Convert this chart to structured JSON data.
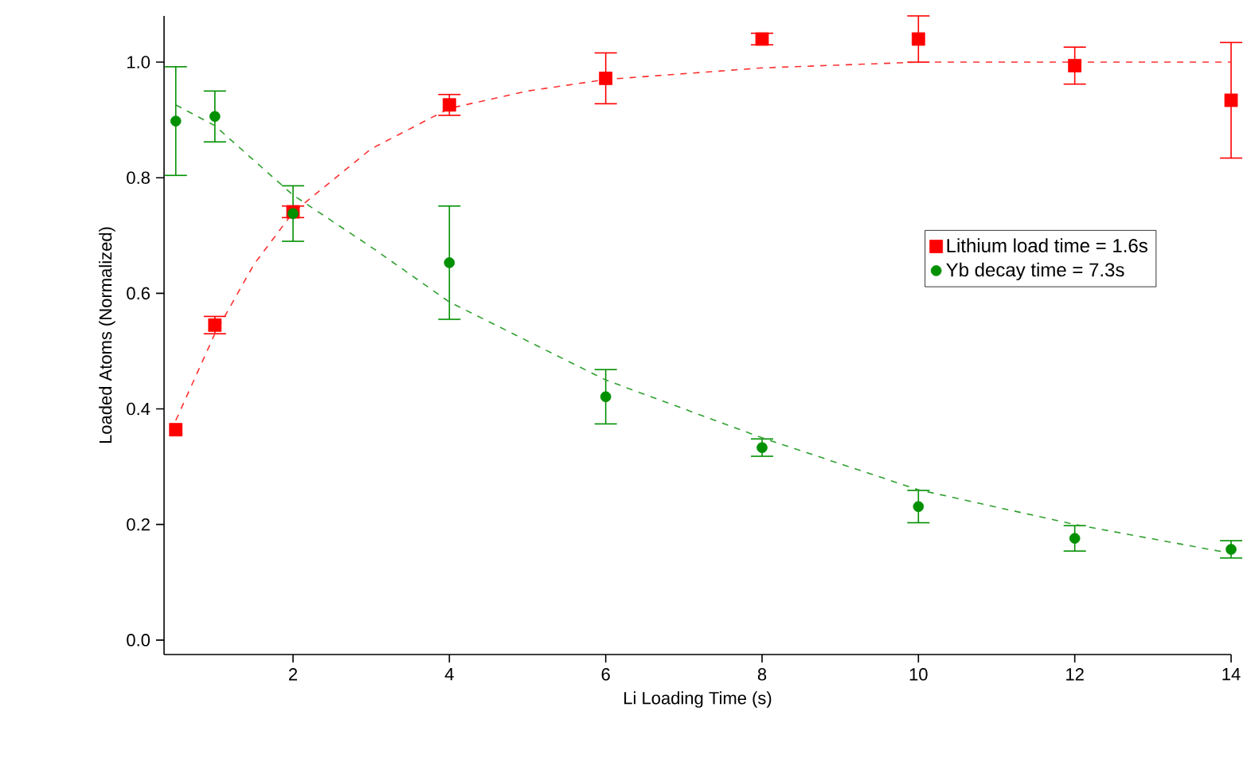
{
  "chart_data": {
    "type": "scatter",
    "xlabel": "Li Loading Time (s)",
    "ylabel": "Loaded Atoms (Normalized)",
    "xlim": [
      0.35,
      14.0
    ],
    "ylim": [
      -0.025,
      1.08
    ],
    "xticks": [
      2,
      4,
      6,
      8,
      10,
      12,
      14
    ],
    "yticks": [
      {
        "value": 0,
        "label": "0.0"
      },
      {
        "value": 0.2,
        "label": "0.2"
      },
      {
        "value": 0.4,
        "label": "0.4"
      },
      {
        "value": 0.6,
        "label": "0.6"
      },
      {
        "value": 0.8,
        "label": "0.8"
      },
      {
        "value": 1.0,
        "label": "1.0"
      }
    ],
    "grid": false,
    "legend": "right",
    "series": [
      {
        "name": "Lithium load time = 1.6s",
        "color": "#ff0000",
        "marker": "square",
        "x": [
          0.5,
          1,
          2,
          4,
          6,
          8,
          10,
          12,
          14
        ],
        "values": [
          0.364,
          0.545,
          0.741,
          0.926,
          0.972,
          1.04,
          1.04,
          0.994,
          0.934
        ],
        "errors": [
          null,
          0.015,
          0.01,
          0.018,
          0.044,
          0.01,
          0.04,
          0.032,
          0.1
        ]
      },
      {
        "name": "Yb decay time = 7.3s",
        "color": "#009000",
        "marker": "circle",
        "x": [
          0.5,
          1,
          2,
          4,
          6,
          8,
          10,
          12,
          14
        ],
        "values": [
          0.898,
          0.906,
          0.738,
          0.653,
          0.421,
          0.333,
          0.231,
          0.176,
          0.157
        ],
        "errors": [
          0.094,
          0.044,
          0.048,
          0.098,
          0.047,
          0.015,
          0.028,
          0.022,
          0.015
        ]
      },
      {
        "type": "line",
        "color": "#ff3030",
        "marker": "none",
        "line_style": "dashed",
        "x": [
          0.5,
          1,
          1.5,
          2,
          3,
          4,
          5,
          6,
          8,
          10,
          12,
          14
        ],
        "values": [
          0.38,
          0.53,
          0.65,
          0.74,
          0.85,
          0.92,
          0.95,
          0.97,
          0.99,
          1.0,
          1.0,
          1.0
        ]
      },
      {
        "type": "line",
        "color": "#30a030",
        "marker": "none",
        "line_style": "dashed",
        "x": [
          0.5,
          1,
          2,
          3,
          4,
          6,
          8,
          10,
          12,
          14
        ],
        "values": [
          0.926,
          0.89,
          0.77,
          0.68,
          0.585,
          0.45,
          0.35,
          0.26,
          0.2,
          0.15
        ]
      }
    ]
  }
}
